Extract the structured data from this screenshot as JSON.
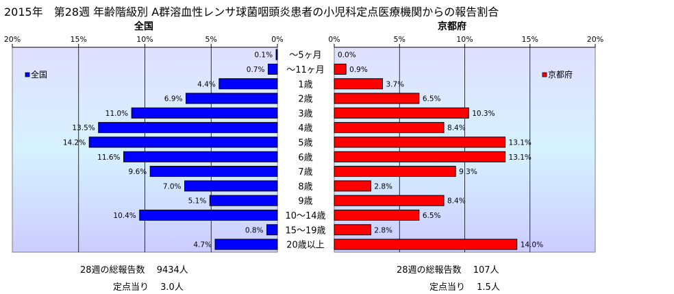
{
  "title": "2015年　第28週 年齢階級別 A群溶血性レンサ球菌咽頭炎患者の小児科定点医療機関からの報告割合",
  "chart_data": [
    {
      "type": "bar",
      "orientation": "horizontal",
      "direction": "right-to-left",
      "title": "全国",
      "categories": [
        "～5ヶ月",
        "～11ヶ月",
        "1歳",
        "2歳",
        "3歳",
        "4歳",
        "5歳",
        "6歳",
        "7歳",
        "8歳",
        "9歳",
        "10～14歳",
        "15～19歳",
        "20歳以上"
      ],
      "series": [
        {
          "name": "全国",
          "values": [
            0.1,
            0.7,
            4.4,
            6.9,
            11.0,
            13.5,
            14.2,
            11.6,
            9.6,
            7.0,
            5.1,
            10.4,
            0.8,
            4.7
          ],
          "labels": [
            "0.1%",
            "0.7%",
            "4.4%",
            "6.9%",
            "11.0%",
            "13.5%",
            "14.2%",
            "11.6%",
            "9.6%",
            "7.0%",
            "5.1%",
            "10.4%",
            "0.8%",
            "4.7%"
          ]
        }
      ],
      "xlim": [
        0,
        20
      ],
      "ticks": [
        0,
        5,
        10,
        15,
        20
      ],
      "tick_labels": [
        "0%",
        "5%",
        "10%",
        "15%",
        "20%"
      ],
      "grid": true,
      "legend_position": "top-left",
      "bar_color": "#0000ff"
    },
    {
      "type": "bar",
      "orientation": "horizontal",
      "direction": "left-to-right",
      "title": "京都府",
      "categories": [
        "～5ヶ月",
        "～11ヶ月",
        "1歳",
        "2歳",
        "3歳",
        "4歳",
        "5歳",
        "6歳",
        "7歳",
        "8歳",
        "9歳",
        "10～14歳",
        "15～19歳",
        "20歳以上"
      ],
      "series": [
        {
          "name": "京都府",
          "values": [
            0.0,
            0.9,
            3.7,
            6.5,
            10.3,
            8.4,
            13.1,
            13.1,
            9.3,
            2.8,
            8.4,
            6.5,
            2.8,
            14.0
          ],
          "labels": [
            "0.0%",
            "0.9%",
            "3.7%",
            "6.5%",
            "10.3%",
            "8.4%",
            "13.1%",
            "13.1%",
            "9.3%",
            "2.8%",
            "8.4%",
            "6.5%",
            "2.8%",
            "14.0%"
          ]
        }
      ],
      "xlim": [
        0,
        20
      ],
      "ticks": [
        0,
        5,
        10,
        15,
        20
      ],
      "tick_labels": [
        "0%",
        "5%",
        "10%",
        "15%",
        "20%"
      ],
      "grid": true,
      "legend_position": "top-right",
      "bar_color": "#ff0000"
    }
  ],
  "footer": {
    "national": {
      "total_label": "28週の総報告数",
      "total_value": "9434人",
      "per_label": "定点当り",
      "per_value": "3.0人"
    },
    "kyoto": {
      "total_label": "28週の総報告数",
      "total_value": "107人",
      "per_label": "定点当り",
      "per_value": "1.5人"
    }
  }
}
